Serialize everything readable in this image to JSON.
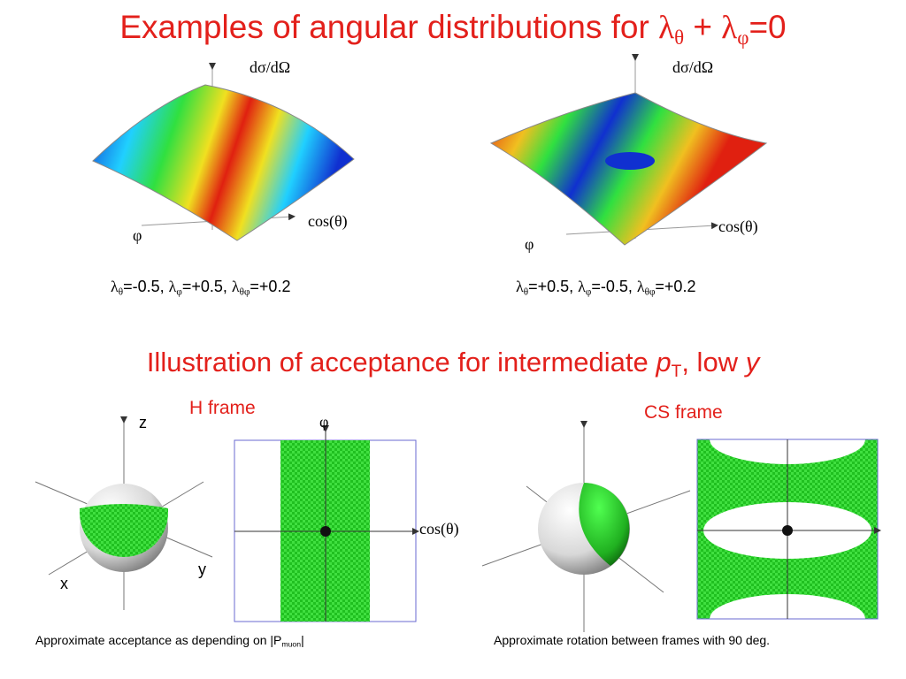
{
  "title": [
    "Examples of angular distributions for ",
    "λ",
    "θ",
    " + ",
    "λ",
    "φ",
    "=0"
  ],
  "top_plots": [
    {
      "z_label": "dσ/dΩ",
      "x_label": "cos(θ)",
      "y_label": "φ",
      "caption": [
        "λ",
        "θ",
        "=-0.5, ",
        "λ",
        "φ",
        "=+0.5, ",
        "λ",
        "θφ",
        "=+0.2"
      ]
    },
    {
      "z_label": "dσ/dΩ",
      "x_label": "cos(θ)",
      "y_label": "φ",
      "caption": [
        "λ",
        "θ",
        "=+0.5, ",
        "λ",
        "φ",
        "=-0.5, ",
        "λ",
        "θφ",
        "=+0.2"
      ]
    }
  ],
  "subtitle": [
    "Illustration of acceptance for intermediate ",
    "p",
    "T",
    ", low ",
    "y"
  ],
  "bottom_panels": [
    {
      "frame": "H frame",
      "sphere_axes": {
        "z": "z",
        "x": "x",
        "y": "y"
      },
      "map_y_label": "φ",
      "map_x_label": "cos(θ)",
      "caption": [
        "Approximate acceptance as depending on |P",
        "muon",
        "|"
      ]
    },
    {
      "frame": "CS frame",
      "caption": "Approximate rotation between frames with 90 deg."
    }
  ]
}
